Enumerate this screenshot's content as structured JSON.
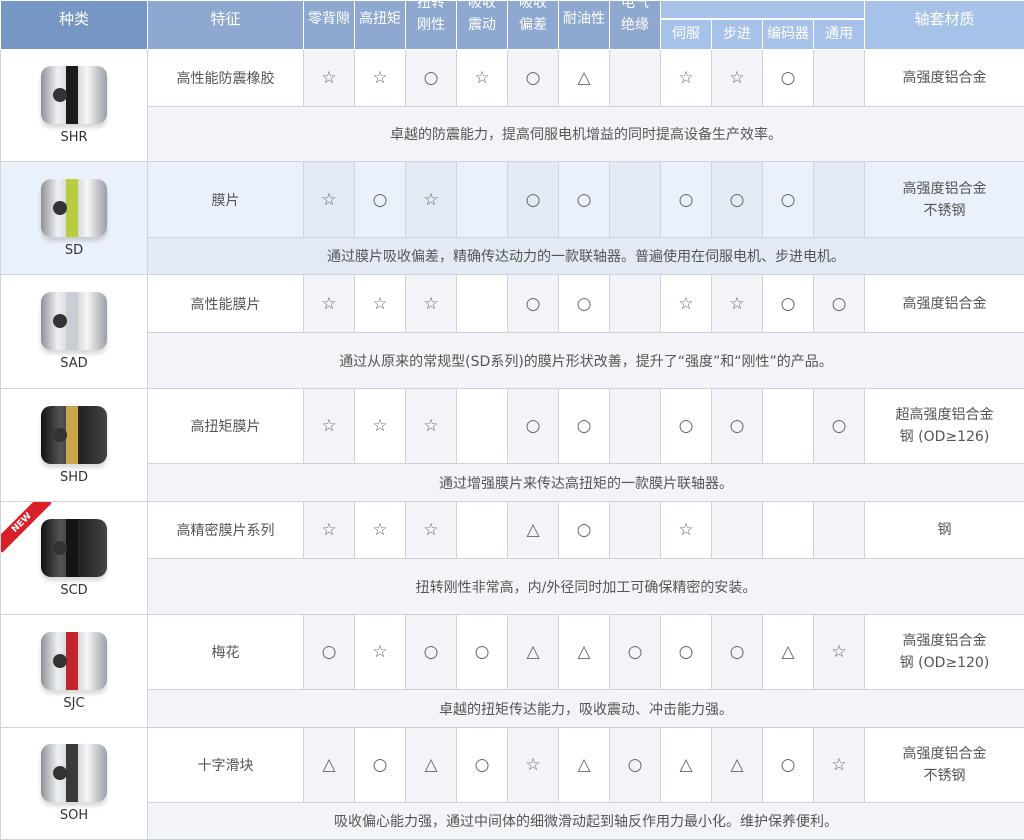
{
  "header": {
    "type": "种类",
    "feature": "特征",
    "cols": [
      "零背隙",
      "高扭矩",
      "扭转刚性",
      "吸收震动",
      "吸收偏差",
      "耐油性",
      "电气绝缘"
    ],
    "motor_cols": [
      "伺服",
      "步进",
      "编码器",
      "通用"
    ],
    "material": "轴套材质"
  },
  "symbols": {
    "star": "☆",
    "circle": "○",
    "triangle": "△"
  },
  "rows": [
    {
      "name": "SHR",
      "feature": "高性能防震橡胶",
      "marks": [
        "☆",
        "☆",
        "○",
        "☆",
        "○",
        "△",
        "",
        "☆",
        "☆",
        "○",
        ""
      ],
      "material": [
        "高强度铝合金"
      ],
      "desc": "卓越的防震能力，提高伺服电机增益的同时提高设备生产效率。"
    },
    {
      "name": "SD",
      "feature": "膜片",
      "marks": [
        "☆",
        "○",
        "☆",
        "",
        "○",
        "○",
        "",
        "○",
        "○",
        "○",
        ""
      ],
      "material": [
        "高强度铝合金",
        "不锈钢"
      ],
      "desc": "通过膜片吸收偏差，精确传达动力的一款联轴器。普遍使用在伺服电机、步进电机。"
    },
    {
      "name": "SAD",
      "feature": "高性能膜片",
      "marks": [
        "☆",
        "☆",
        "☆",
        "",
        "○",
        "○",
        "",
        "☆",
        "☆",
        "○",
        "○"
      ],
      "material": [
        "高强度铝合金"
      ],
      "desc": "通过从原来的常规型(SD系列)的膜片形状改善，提升了“强度”和“刚性”的产品。"
    },
    {
      "name": "SHD",
      "feature": "高扭矩膜片",
      "marks": [
        "☆",
        "☆",
        "☆",
        "",
        "○",
        "○",
        "",
        "○",
        "○",
        "",
        "○"
      ],
      "material": [
        "超高强度铝合金",
        "钢 (OD≥126)"
      ],
      "desc": "通过增强膜片来传达高扭矩的一款膜片联轴器。"
    },
    {
      "name": "SCD",
      "badge": "NEW",
      "feature": "高精密膜片系列",
      "marks": [
        "☆",
        "☆",
        "☆",
        "",
        "△",
        "○",
        "",
        "☆",
        "",
        "",
        ""
      ],
      "material": [
        "钢"
      ],
      "desc": "扭转刚性非常高，内/外径同时加工可确保精密的安装。"
    },
    {
      "name": "SJC",
      "feature": "梅花",
      "marks": [
        "○",
        "☆",
        "○",
        "○",
        "△",
        "△",
        "○",
        "○",
        "○",
        "△",
        "☆"
      ],
      "material": [
        "高强度铝合金",
        "钢 (OD≥120)"
      ],
      "desc": "卓越的扭矩传达能力，吸收震动、冲击能力强。"
    },
    {
      "name": "SOH",
      "feature": "十字滑块",
      "marks": [
        "△",
        "○",
        "△",
        "○",
        "☆",
        "△",
        "○",
        "△",
        "△",
        "○",
        "☆"
      ],
      "material": [
        "高强度铝合金",
        "不锈钢"
      ],
      "desc": "吸收偏心能力强，通过中间体的细微滑动起到轴反作用力最小化。维护保养便利。"
    }
  ]
}
